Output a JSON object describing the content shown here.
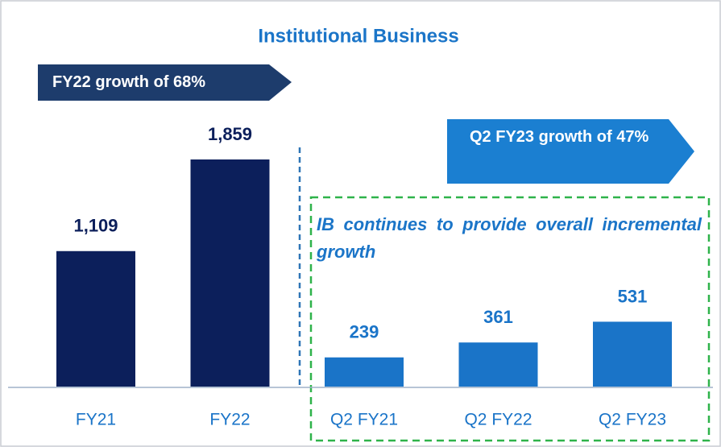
{
  "chart_data": {
    "type": "bar",
    "title": "Institutional Business",
    "categories": [
      "FY21",
      "FY22",
      "Q2 FY21",
      "Q2 FY22",
      "Q2 FY23"
    ],
    "values": [
      1109,
      1859,
      239,
      361,
      531
    ],
    "value_labels": [
      "1,109",
      "1,859",
      "239",
      "361",
      "531"
    ],
    "colors": [
      "#0c1f5b",
      "#0c1f5b",
      "#1a74c8",
      "#1a74c8",
      "#1a74c8"
    ],
    "label_colors": [
      "#0c1f5b",
      "#0c1f5b",
      "#1a74c8",
      "#1a74c8",
      "#1a74c8"
    ],
    "annotations": [
      "FY22 growth of 68%",
      "Q2 FY23 growth of 47%",
      "IB continues to provide overall incremental growth"
    ]
  }
}
